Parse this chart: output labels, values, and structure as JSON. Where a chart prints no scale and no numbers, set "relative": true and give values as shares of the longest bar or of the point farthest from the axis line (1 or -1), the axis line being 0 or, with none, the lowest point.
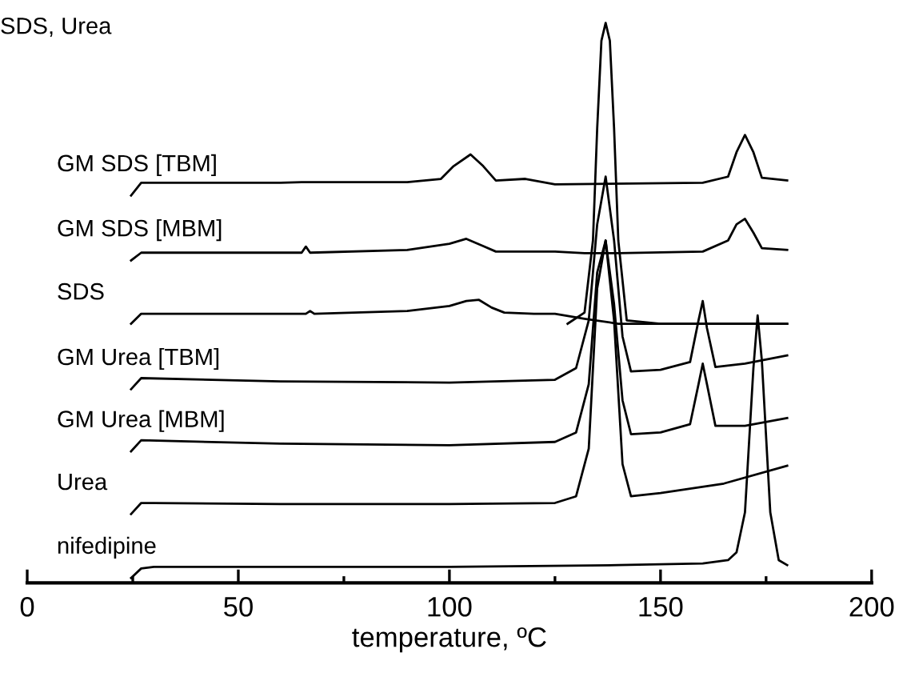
{
  "chart_data": {
    "type": "line",
    "title": "SDS, Urea",
    "xlabel": "temperature, ºC",
    "relative": true,
    "xlim": [
      0,
      200
    ],
    "xticks": [
      0,
      {
        "value": 25,
        "label": null
      },
      50,
      {
        "value": 75,
        "label": null
      },
      100,
      {
        "value": 125,
        "label": null
      },
      150,
      {
        "value": 175,
        "label": null
      },
      200
    ],
    "grid": false,
    "legend": false,
    "marker": "none",
    "line_style": "solid",
    "series": [
      {
        "color": "#000000",
        "x": [
          128,
          132,
          134,
          135,
          136,
          137,
          138,
          139,
          140,
          142,
          150,
          180
        ],
        "values": [
          0.458,
          0.478,
          0.608,
          0.81,
          0.968,
          1.0,
          0.968,
          0.81,
          0.608,
          0.464,
          0.458,
          0.458
        ]
      },
      {
        "name": "GM SDS [TBM]",
        "color": "#000000",
        "x": [
          24.6,
          27,
          60,
          65,
          90,
          98,
          101,
          105,
          108,
          111,
          118,
          125,
          160,
          166,
          168,
          170,
          172,
          174,
          180
        ],
        "values": [
          0.689,
          0.712,
          0.712,
          0.713,
          0.713,
          0.719,
          0.742,
          0.763,
          0.742,
          0.716,
          0.719,
          0.709,
          0.712,
          0.723,
          0.767,
          0.798,
          0.767,
          0.721,
          0.716
        ]
      },
      {
        "name": "GM SDS [MBM]",
        "color": "#000000",
        "x": [
          24.6,
          27,
          60,
          65,
          66,
          67,
          90,
          100,
          104,
          108,
          111,
          125,
          132,
          140,
          160,
          166,
          168,
          170,
          172,
          174,
          180
        ],
        "values": [
          0.572,
          0.586,
          0.586,
          0.586,
          0.597,
          0.586,
          0.591,
          0.602,
          0.611,
          0.598,
          0.588,
          0.588,
          0.585,
          0.585,
          0.588,
          0.608,
          0.637,
          0.647,
          0.622,
          0.594,
          0.591
        ]
      },
      {
        "name": "SDS",
        "color": "#000000",
        "x": [
          24.6,
          27,
          60,
          66,
          67,
          68,
          90,
          100,
          104,
          107,
          110,
          113,
          120,
          125,
          132,
          140,
          160,
          180
        ],
        "values": [
          0.458,
          0.476,
          0.476,
          0.476,
          0.481,
          0.476,
          0.481,
          0.49,
          0.499,
          0.501,
          0.487,
          0.478,
          0.476,
          0.476,
          0.467,
          0.458,
          0.458,
          0.458
        ]
      },
      {
        "name": "GM Urea [TBM]",
        "color": "#000000",
        "x": [
          24.6,
          27,
          60,
          100,
          125,
          130,
          133,
          135,
          137,
          139,
          141,
          143,
          150,
          157,
          159,
          160,
          161,
          163,
          170,
          180
        ],
        "values": [
          0.34,
          0.36,
          0.354,
          0.352,
          0.357,
          0.378,
          0.464,
          0.637,
          0.723,
          0.608,
          0.435,
          0.372,
          0.375,
          0.389,
          0.464,
          0.499,
          0.45,
          0.38,
          0.386,
          0.401
        ]
      },
      {
        "name": "GM Urea [MBM]",
        "color": "#000000",
        "x": [
          24.6,
          27,
          60,
          100,
          125,
          130,
          133,
          135,
          137,
          139,
          141,
          143,
          150,
          157,
          159,
          160,
          161,
          163,
          170,
          180
        ],
        "values": [
          0.228,
          0.248,
          0.242,
          0.239,
          0.245,
          0.262,
          0.349,
          0.55,
          0.608,
          0.493,
          0.32,
          0.259,
          0.262,
          0.277,
          0.349,
          0.386,
          0.349,
          0.274,
          0.274,
          0.288
        ]
      },
      {
        "name": "Urea",
        "color": "#000000",
        "x": [
          24.6,
          27,
          30,
          60,
          100,
          125,
          130,
          133,
          135,
          137,
          139,
          141,
          143,
          150,
          165,
          180
        ],
        "values": [
          0.115,
          0.135,
          0.135,
          0.133,
          0.133,
          0.135,
          0.147,
          0.233,
          0.522,
          0.608,
          0.464,
          0.205,
          0.147,
          0.153,
          0.17,
          0.202
        ]
      },
      {
        "name": "nifedipine",
        "color": "#000000",
        "x": [
          24.6,
          27,
          30,
          60,
          100,
          140,
          160,
          166,
          168,
          170,
          172,
          173,
          174,
          176,
          178,
          180
        ],
        "values": [
          0,
          0.017,
          0.02,
          0.02,
          0.02,
          0.023,
          0.026,
          0.032,
          0.046,
          0.118,
          0.378,
          0.473,
          0.392,
          0.118,
          0.032,
          0.023
        ]
      }
    ]
  }
}
